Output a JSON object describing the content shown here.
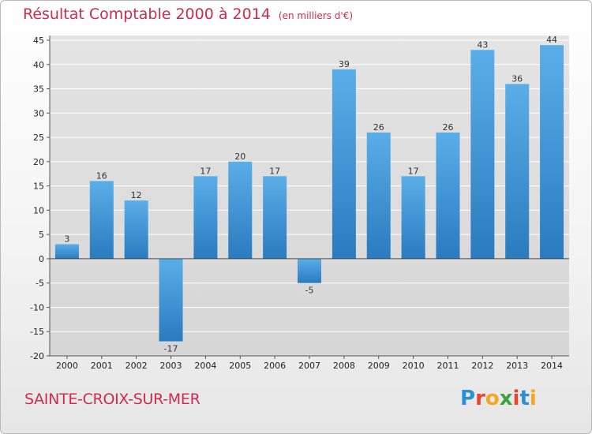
{
  "header": {
    "title": "Résultat Comptable 2000 à 2014",
    "subtitle": "(en milliers d'€)"
  },
  "footer": {
    "commune": "SAINTE-CROIX-SUR-MER",
    "logo_letters": [
      {
        "char": "P",
        "color": "#2a8fd6"
      },
      {
        "char": "r",
        "color": "#e8452c"
      },
      {
        "char": "o",
        "color": "#f5a623"
      },
      {
        "char": "x",
        "color": "#3aa53a"
      },
      {
        "char": "i",
        "color": "#e8452c"
      },
      {
        "char": "t",
        "color": "#2a8fd6"
      },
      {
        "char": "i",
        "color": "#f5a623"
      }
    ]
  },
  "chart_data": {
    "type": "bar",
    "title": "Résultat Comptable 2000 à 2014",
    "subtitle": "(en milliers d'€)",
    "categories": [
      "2000",
      "2001",
      "2002",
      "2003",
      "2004",
      "2005",
      "2006",
      "2007",
      "2008",
      "2009",
      "2010",
      "2011",
      "2012",
      "2013",
      "2014"
    ],
    "values": [
      3,
      16,
      12,
      -17,
      17,
      20,
      17,
      -5,
      39,
      26,
      17,
      26,
      43,
      36,
      44
    ],
    "value_labels": [
      "3",
      "16",
      "12",
      "-17",
      "17",
      "20",
      "17",
      "-5",
      "39",
      "26",
      "17",
      "26",
      "43",
      "36",
      "44"
    ],
    "ylim": [
      -20,
      45
    ],
    "yticks": [
      -20,
      -15,
      -10,
      -5,
      0,
      5,
      10,
      15,
      20,
      25,
      30,
      35,
      40,
      45
    ],
    "ytick_labels": [
      "-20",
      "-15",
      "-10",
      "-5",
      "0",
      "5",
      "10",
      "15",
      "20",
      "25",
      "30",
      "35",
      "40",
      "45"
    ],
    "grid": true,
    "bar_color_top": "#5aaee8",
    "bar_color_bottom": "#2a7bbf",
    "grid_color": "#ffffff"
  }
}
